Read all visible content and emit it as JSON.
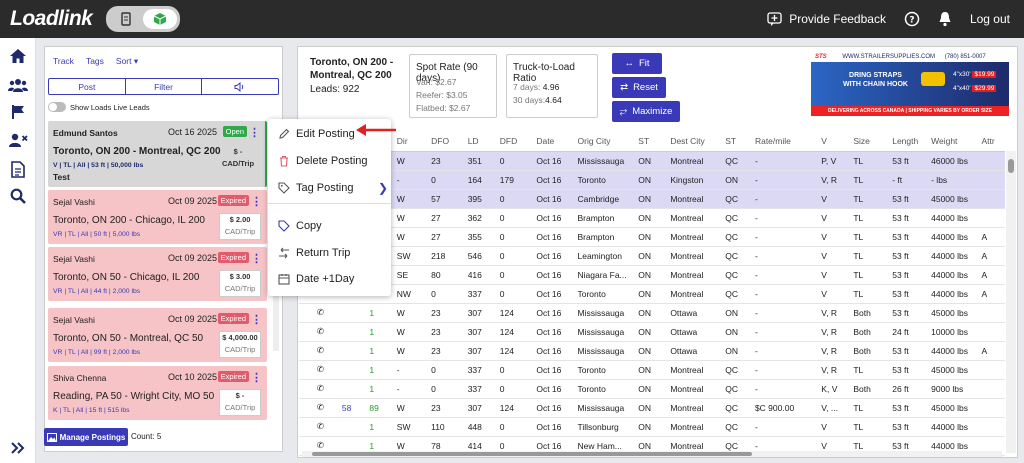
{
  "app": {
    "logo": "Loadlink"
  },
  "top": {
    "feedback": "Provide Feedback",
    "logout": "Log out"
  },
  "left": {
    "tabs": [
      "Track",
      "Tags",
      "Sort ▾"
    ],
    "segments": {
      "post": "Post",
      "filter": "Filter"
    },
    "toggle_label": "Show Loads Live Leads",
    "cards": [
      {
        "name": "Edmund Santos",
        "date": "Oct 16 2025",
        "badge": "Open",
        "route": "Toronto, ON 200  -  Montreal, QC 200",
        "specs": "V | TL | All | 53 ft | 50,000 lbs",
        "note": "Test",
        "price": "$ -",
        "unit": "CAD/Trip"
      },
      {
        "name": "Sejal Vashi",
        "date": "Oct 09 2025",
        "badge": "Expired",
        "route": "Toronto, ON 200  -  Chicago, IL 200",
        "specs": "VR | TL | All | 50 ft | 5,000 lbs",
        "price": "$ 2.00",
        "unit": "CAD/Trip"
      },
      {
        "name": "Sejal Vashi",
        "date": "Oct 09 2025",
        "badge": "Expired",
        "route": "Toronto, ON 50  -  Chicago, IL 200",
        "specs": "VR | TL | All | 44 ft | 2,000 lbs",
        "price": "$ 3.00",
        "unit": "CAD/Trip"
      },
      {
        "name": "Sejal Vashi",
        "date": "Oct 09 2025",
        "badge": "Expired",
        "route": "Toronto, ON 50  -  Montreal, QC 50",
        "specs": "VR | TL | All | 99 ft | 2,000 lbs",
        "price": "$ 4,000.00",
        "unit": "CAD/Trip"
      },
      {
        "name": "Shiva Chenna",
        "date": "Oct 10 2025",
        "badge": "Expired",
        "route": "Reading, PA 50  -  Wright City, MO 50",
        "specs": "K | TL | All | 15 ft | 515 lbs",
        "price": "$ -",
        "unit": "CAD/Trip"
      }
    ],
    "manage": "Manage Postings",
    "count_label": "Count:",
    "count": "5"
  },
  "main": {
    "title_line1": "Toronto, ON 200 -",
    "title_line2": "Montreal, QC 200",
    "leads": "Leads: 922",
    "spot": {
      "title": "Spot Rate (90 days)",
      "van": "Van: $2.67",
      "reefer": "Reefer: $3.05",
      "flatbed": "Flatbed: $2.67"
    },
    "ratio": {
      "title": "Truck-to-Load Ratio",
      "d7_label": "7 days:",
      "d7": "4.96",
      "d30_label": "30 days:",
      "d30": "4.64"
    },
    "buttons": {
      "fit": "Fit",
      "reset": "Reset",
      "maximize": "Maximize"
    },
    "ad": {
      "brand": "STS",
      "url": "WWW.STRAILERSUPPLIES.COM",
      "phone": "(780) 851-0007",
      "headline1": "DRING STRAPS",
      "headline2": "WITH CHAIN HOOK",
      "size1": "4\"x30'",
      "size2": "4\"x40'",
      "price1": "$19.99",
      "price2": "$29.99",
      "footer": "DELIVERING ACROSS CANADA | SHIPPING VARIES BY ORDER SIZE"
    }
  },
  "table": {
    "headers": [
      "",
      "",
      "",
      "Dir",
      "DFO",
      "LD",
      "DFD",
      "Date",
      "Orig City",
      "ST",
      "Dest City",
      "ST",
      "Rate/mile",
      "V",
      "Size",
      "Length",
      "Weight",
      "Attr"
    ],
    "rows": [
      [
        "",
        "",
        "",
        "W",
        "23",
        "351",
        "0",
        "Oct 16",
        "Mississauga",
        "ON",
        "Montreal",
        "QC",
        "-",
        "P, V",
        "TL",
        "53 ft",
        "46000 lbs",
        ""
      ],
      [
        "",
        "",
        "",
        "-",
        "0",
        "164",
        "179",
        "Oct 16",
        "Toronto",
        "ON",
        "Kingston",
        "ON",
        "-",
        "V, R",
        "TL",
        "- ft",
        "- lbs",
        ""
      ],
      [
        "",
        "",
        "",
        "W",
        "57",
        "395",
        "0",
        "Oct 16",
        "Cambridge",
        "ON",
        "Montreal",
        "QC",
        "-",
        "V",
        "TL",
        "53 ft",
        "45000 lbs",
        ""
      ],
      [
        "",
        "",
        "",
        "W",
        "27",
        "362",
        "0",
        "Oct 16",
        "Brampton",
        "ON",
        "Montreal",
        "QC",
        "-",
        "V",
        "TL",
        "53 ft",
        "44000 lbs",
        ""
      ],
      [
        "",
        "",
        "",
        "W",
        "27",
        "355",
        "0",
        "Oct 16",
        "Brampton",
        "ON",
        "Montreal",
        "QC",
        "-",
        "V",
        "TL",
        "53 ft",
        "44000 lbs",
        "A"
      ],
      [
        "",
        "",
        "",
        "SW",
        "218",
        "546",
        "0",
        "Oct 16",
        "Leamington",
        "ON",
        "Montreal",
        "QC",
        "-",
        "V",
        "TL",
        "53 ft",
        "44000 lbs",
        "A"
      ],
      [
        "",
        "",
        "",
        "SE",
        "80",
        "416",
        "0",
        "Oct 16",
        "Niagara Fa...",
        "ON",
        "Montreal",
        "QC",
        "-",
        "V",
        "TL",
        "53 ft",
        "44000 lbs",
        "A"
      ],
      [
        "",
        "",
        "",
        "NW",
        "0",
        "337",
        "0",
        "Oct 16",
        "Toronto",
        "ON",
        "Montreal",
        "QC",
        "-",
        "V",
        "TL",
        "53 ft",
        "44000 lbs",
        "A"
      ],
      [
        "✆",
        "",
        "1",
        "W",
        "23",
        "307",
        "124",
        "Oct 16",
        "Mississauga",
        "ON",
        "Ottawa",
        "ON",
        "-",
        "V, R",
        "Both",
        "53 ft",
        "45000 lbs",
        ""
      ],
      [
        "✆",
        "",
        "1",
        "W",
        "23",
        "307",
        "124",
        "Oct 16",
        "Mississauga",
        "ON",
        "Ottawa",
        "ON",
        "-",
        "V, R",
        "Both",
        "24 ft",
        "10000 lbs",
        ""
      ],
      [
        "✆",
        "",
        "1",
        "W",
        "23",
        "307",
        "124",
        "Oct 16",
        "Mississauga",
        "ON",
        "Ottawa",
        "ON",
        "-",
        "V, R",
        "Both",
        "53 ft",
        "44000 lbs",
        "A"
      ],
      [
        "✆",
        "",
        "1",
        "-",
        "0",
        "337",
        "0",
        "Oct 16",
        "Toronto",
        "ON",
        "Montreal",
        "QC",
        "-",
        "V, R",
        "TL",
        "53 ft",
        "45000 lbs",
        ""
      ],
      [
        "✆",
        "",
        "1",
        "-",
        "0",
        "337",
        "0",
        "Oct 16",
        "Toronto",
        "ON",
        "Montreal",
        "QC",
        "-",
        "K, V",
        "Both",
        "26 ft",
        "9000 lbs",
        ""
      ],
      [
        "✆",
        "58",
        "89",
        "W",
        "23",
        "307",
        "124",
        "Oct 16",
        "Mississauga",
        "ON",
        "Montreal",
        "QC",
        "$C      900.00",
        "V, ...",
        "TL",
        "53 ft",
        "45000 lbs",
        ""
      ],
      [
        "✆",
        "",
        "1",
        "SW",
        "110",
        "448",
        "0",
        "Oct 16",
        "Tillsonburg",
        "ON",
        "Montreal",
        "QC",
        "-",
        "V",
        "TL",
        "53 ft",
        "44000 lbs",
        ""
      ],
      [
        "✆",
        "",
        "1",
        "W",
        "78",
        "414",
        "0",
        "Oct 16",
        "New Ham...",
        "ON",
        "Montreal",
        "QC",
        "-",
        "V",
        "TL",
        "53 ft",
        "44000 lbs",
        ""
      ]
    ]
  },
  "menu": {
    "edit": "Edit Posting",
    "delete": "Delete Posting",
    "tag": "Tag Posting",
    "copy": "Copy",
    "return": "Return Trip",
    "date": "Date +1Day"
  },
  "colors": {
    "accent": "#3a3ab8",
    "open": "#2eaa4a",
    "expired": "#e05c6c",
    "expired_bg": "#f6c3c6",
    "selected_row": "#dcd9f5"
  }
}
